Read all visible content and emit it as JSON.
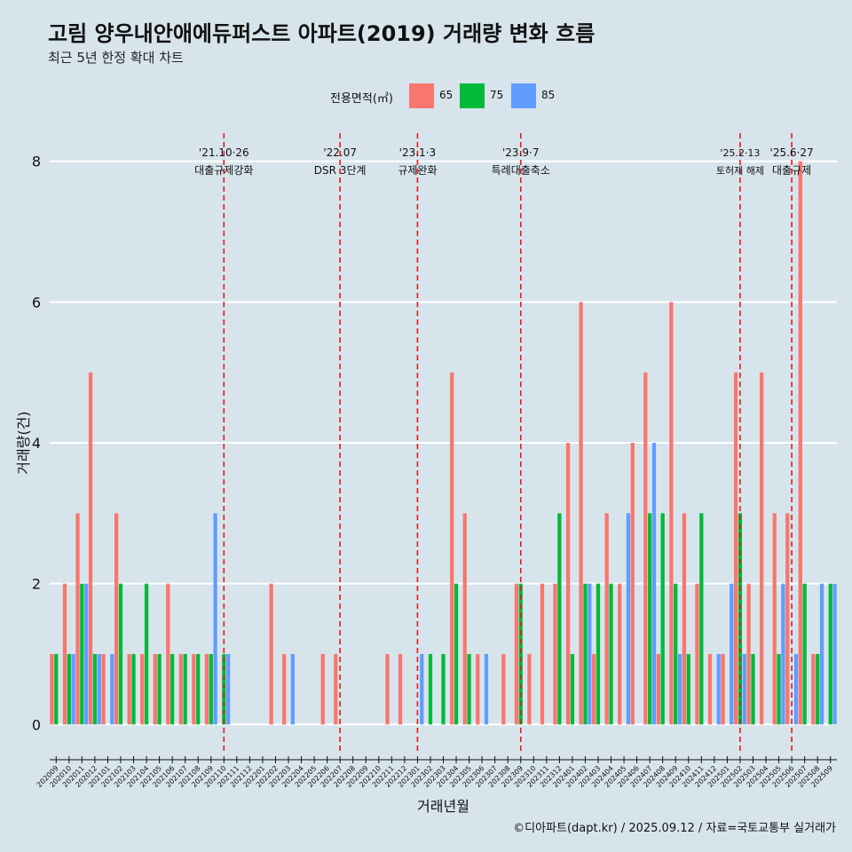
{
  "title": "고림 양우내안애에듀퍼스트 아파트(2019) 거래량 변화 흐름",
  "subtitle": "최근 5년 한정 확대 차트",
  "caption": "©디아파트(dapt.kr) / 2025.09.12 / 자료=국토교통부 실거래가",
  "colors": {
    "65": "#f8766d",
    "75": "#00ba38",
    "85": "#619cff",
    "background": "#d7e4ec",
    "vline": "#e31a1c"
  },
  "chart_data": {
    "type": "bar",
    "title": "고림 양우내안애에듀퍼스트 아파트(2019) 거래량 변화 흐름",
    "subtitle": "최근 5년 한정 확대 차트",
    "xlabel": "거래년월",
    "ylabel": "거래량(건)",
    "ylim": [
      -0.4,
      8.4
    ],
    "yticks": [
      0,
      2,
      4,
      6,
      8
    ],
    "grid": "horizontal",
    "legend": {
      "title": "전용면적(㎡)",
      "position": "top",
      "entries": [
        "65",
        "75",
        "85"
      ]
    },
    "categories": [
      "202009",
      "202010",
      "202011",
      "202012",
      "202101",
      "202102",
      "202103",
      "202104",
      "202105",
      "202106",
      "202107",
      "202108",
      "202109",
      "202110",
      "202111",
      "202112",
      "202201",
      "202202",
      "202203",
      "202204",
      "202205",
      "202206",
      "202207",
      "202208",
      "202209",
      "202210",
      "202211",
      "202212",
      "202301",
      "202302",
      "202303",
      "202304",
      "202305",
      "202306",
      "202307",
      "202308",
      "202309",
      "202310",
      "202311",
      "202312",
      "202401",
      "202402",
      "202403",
      "202404",
      "202405",
      "202406",
      "202407",
      "202408",
      "202409",
      "202410",
      "202411",
      "202412",
      "202501",
      "202502",
      "202503",
      "202504",
      "202505",
      "202506",
      "202507",
      "202508",
      "202509"
    ],
    "series": [
      {
        "name": "65",
        "values": [
          1,
          2,
          3,
          5,
          1,
          3,
          1,
          1,
          1,
          2,
          1,
          1,
          1,
          0,
          0,
          0,
          0,
          2,
          1,
          0,
          0,
          1,
          1,
          0,
          0,
          0,
          1,
          1,
          0,
          0,
          0,
          5,
          3,
          1,
          0,
          1,
          2,
          1,
          2,
          2,
          4,
          6,
          1,
          3,
          2,
          4,
          5,
          1,
          6,
          3,
          2,
          1,
          1,
          5,
          2,
          5,
          3,
          3,
          8,
          1,
          0
        ]
      },
      {
        "name": "75",
        "values": [
          1,
          1,
          2,
          1,
          0,
          2,
          1,
          2,
          1,
          1,
          1,
          1,
          1,
          1,
          0,
          0,
          0,
          0,
          0,
          0,
          0,
          0,
          0,
          0,
          0,
          0,
          0,
          0,
          0,
          1,
          1,
          2,
          1,
          0,
          0,
          0,
          2,
          0,
          0,
          3,
          1,
          2,
          2,
          2,
          0,
          0,
          3,
          3,
          2,
          1,
          3,
          0,
          0,
          3,
          1,
          0,
          1,
          0,
          2,
          1,
          2
        ]
      },
      {
        "name": "85",
        "values": [
          0,
          1,
          2,
          1,
          1,
          0,
          0,
          0,
          0,
          0,
          0,
          0,
          3,
          1,
          0,
          0,
          0,
          0,
          1,
          0,
          0,
          0,
          0,
          0,
          0,
          0,
          0,
          0,
          1,
          0,
          0,
          0,
          0,
          1,
          0,
          0,
          0,
          0,
          0,
          0,
          0,
          2,
          0,
          0,
          3,
          0,
          4,
          0,
          1,
          0,
          0,
          1,
          2,
          1,
          0,
          0,
          2,
          1,
          0,
          2,
          2
        ]
      }
    ],
    "annotations": [
      {
        "date": "'21.10·26",
        "label": "대출규제강화",
        "category": "202110"
      },
      {
        "date": "'22.07",
        "label": "DSR 3단계",
        "category": "202207"
      },
      {
        "date": "'23.1·3",
        "label": "규제완화",
        "category": "202301"
      },
      {
        "date": "'23.9·7",
        "label": "특례대출축소",
        "category": "202309"
      },
      {
        "date": "'25.2·13",
        "label": "토허제 해제",
        "category": "202502"
      },
      {
        "date": "'25.6·27",
        "label": "대출규제",
        "category": "202506"
      }
    ]
  }
}
